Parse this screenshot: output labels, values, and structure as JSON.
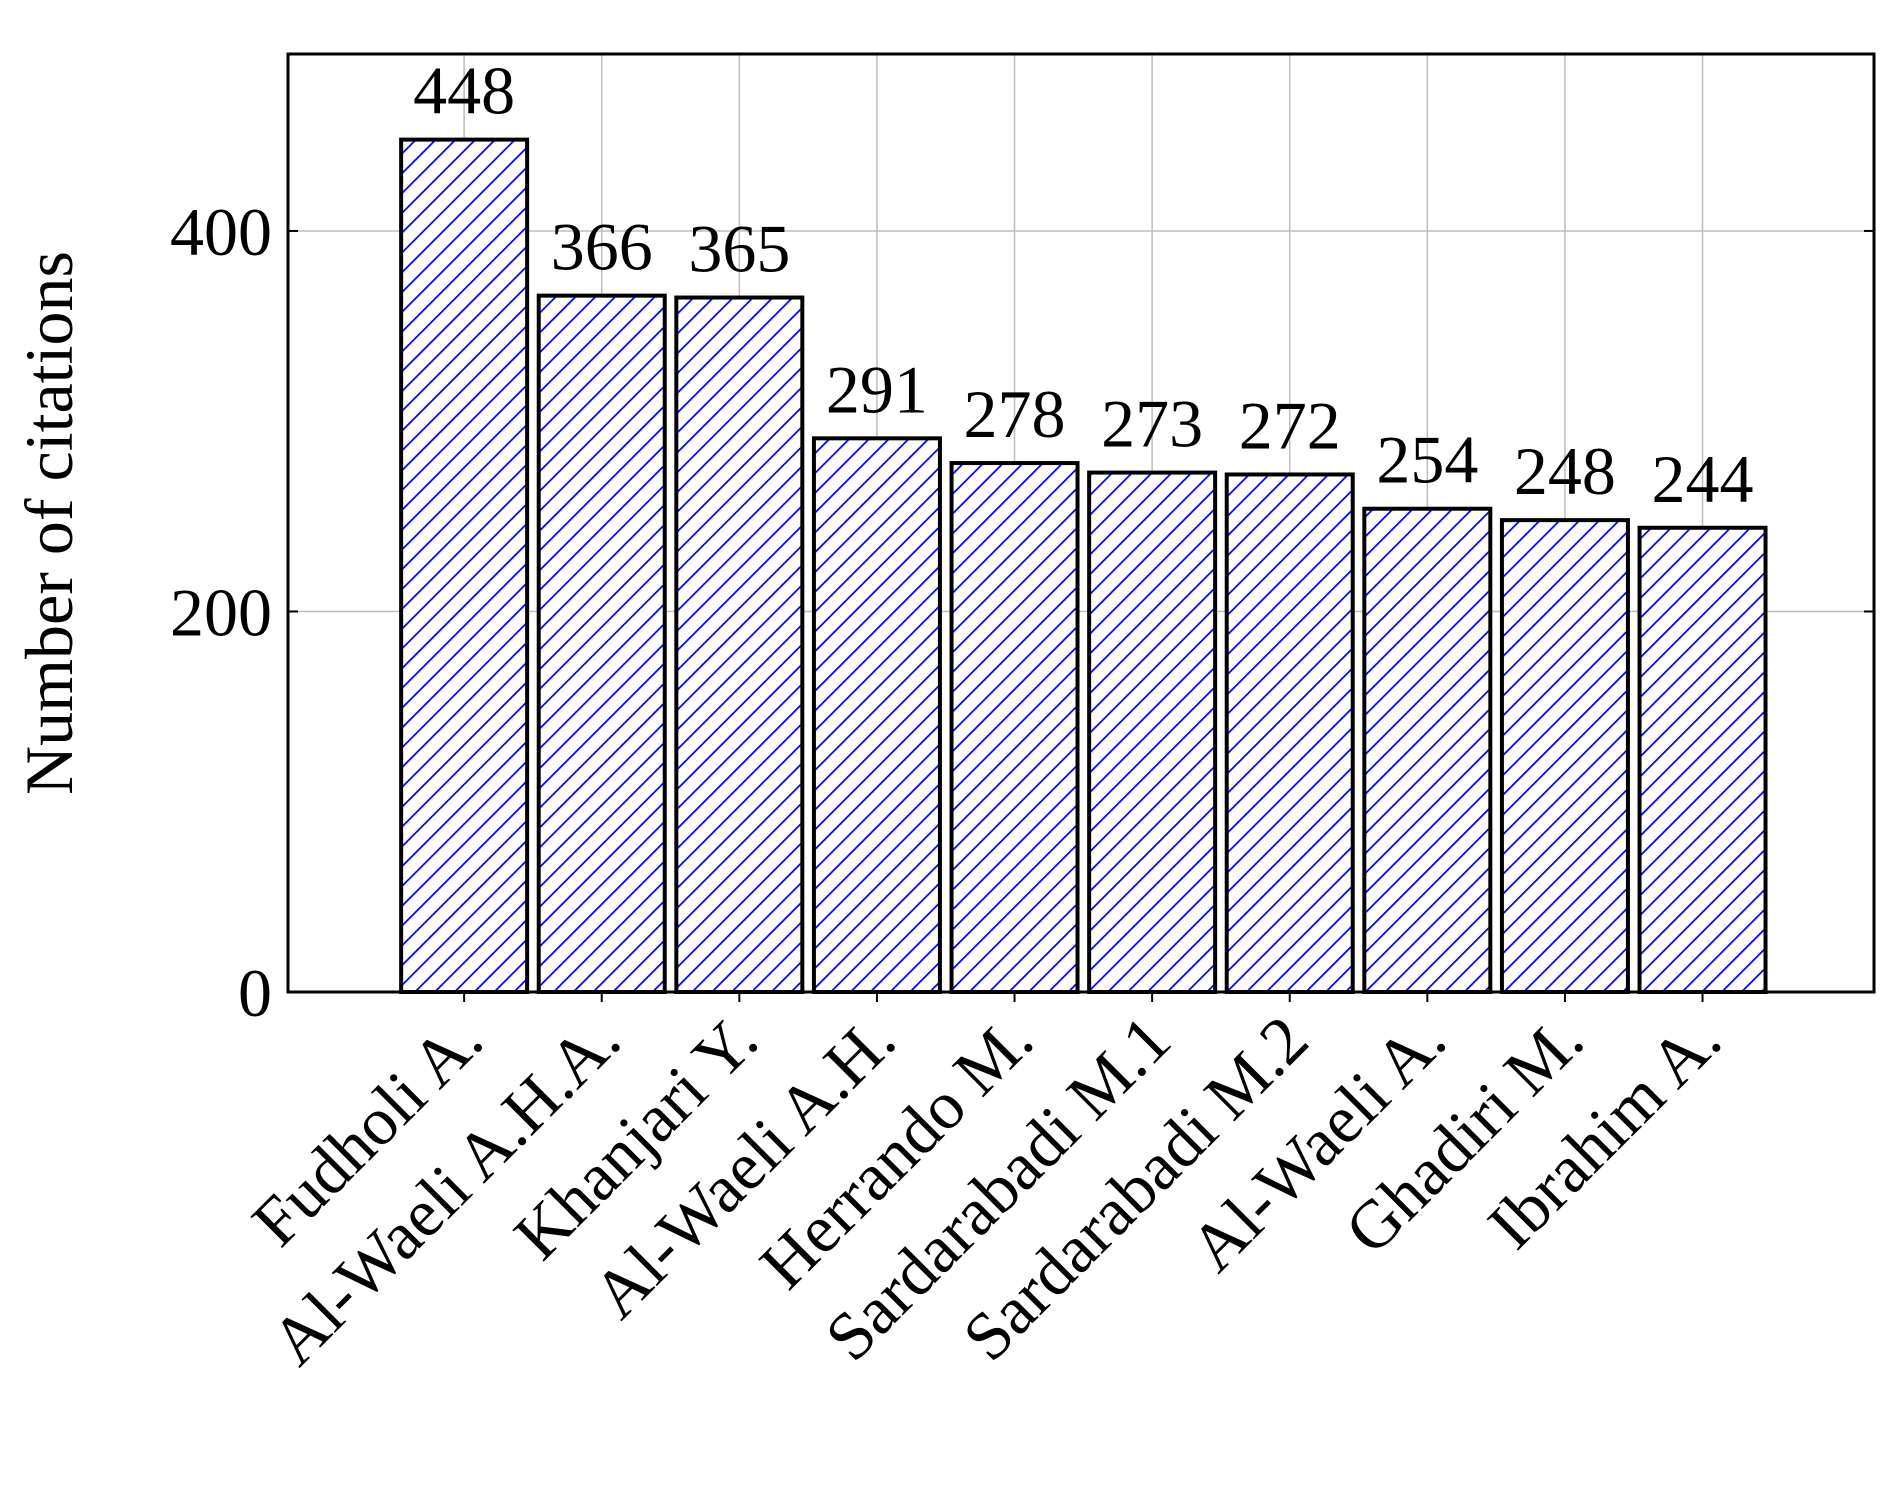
{
  "chart_data": {
    "type": "bar",
    "y_label": "Number of citations",
    "categories": [
      "Fudholi A.",
      "Al-Waeli A.H.A.",
      "Khanjari Y.",
      "Al-Waeli A.H.",
      "Herrando M.",
      "Sardarabadi M.1",
      "Sardarabadi M.2",
      "Al-Waeli A.",
      "Ghadiri M.",
      "Ibrahim A."
    ],
    "values": [
      448,
      366,
      365,
      291,
      278,
      273,
      272,
      254,
      248,
      244
    ],
    "color": "#0000ff",
    "ylim": [
      0,
      493
    ],
    "yticks": [
      0,
      200,
      400
    ],
    "grid": true
  }
}
